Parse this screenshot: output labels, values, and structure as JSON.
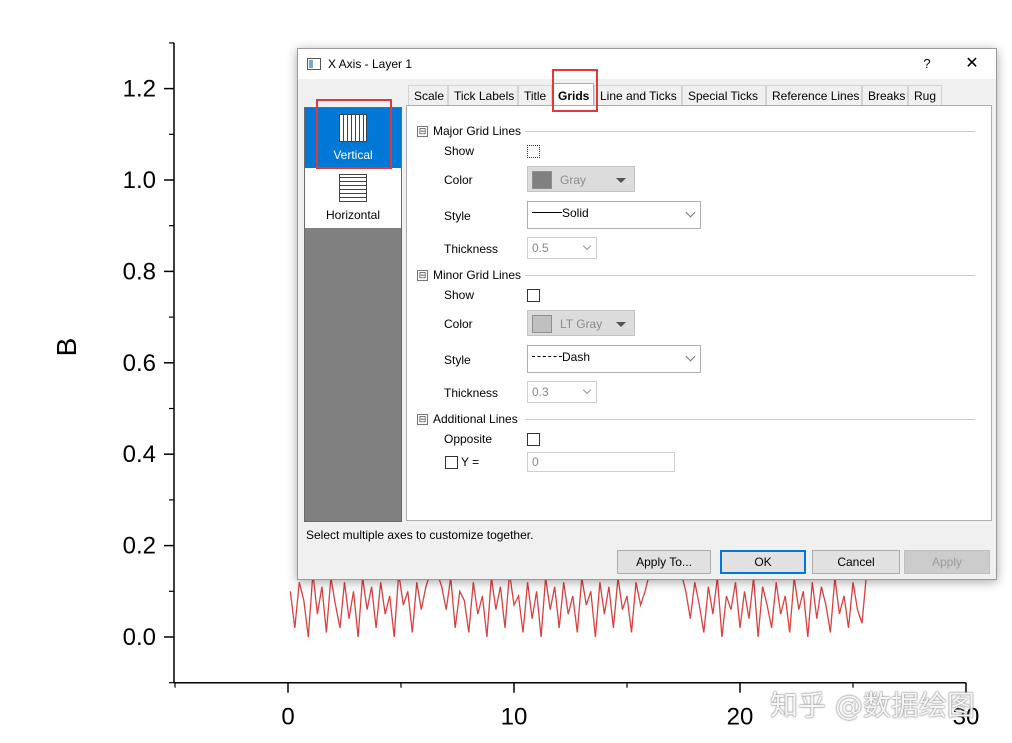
{
  "chart_data": {
    "type": "line",
    "ylabel": "B",
    "xlabel": "",
    "xlim": [
      -5,
      30
    ],
    "ylim": [
      -0.1,
      1.3
    ],
    "x_ticks": [
      0,
      10,
      20,
      30
    ],
    "y_ticks": [
      0.0,
      0.2,
      0.4,
      0.6,
      0.8,
      1.0,
      1.2
    ],
    "x_tick_labels": [
      "0",
      "10",
      "20",
      "30"
    ],
    "y_tick_labels": [
      "0.0",
      "0.2",
      "0.4",
      "0.6",
      "0.8",
      "1.0",
      "1.2"
    ],
    "line_color": "#d9413f",
    "series": [
      {
        "segments": [
          {
            "x": [
              0.1,
              0.3,
              0.5,
              0.7,
              0.9,
              1.1,
              1.3,
              1.5,
              1.7,
              1.9,
              2.1,
              2.3,
              2.5,
              2.7,
              2.9,
              3.1,
              3.3,
              3.5,
              3.7,
              3.9,
              4.1,
              4.3,
              4.5,
              4.7,
              4.9,
              5.1,
              5.3,
              5.5,
              5.7,
              5.9,
              6.1,
              6.3
            ],
            "y": [
              0.1,
              0.02,
              0.12,
              0.08,
              0.0,
              0.14,
              0.05,
              0.11,
              0.01,
              0.13,
              0.07,
              0.02,
              0.12,
              0.04,
              0.1,
              0.0,
              0.13,
              0.06,
              0.11,
              0.02,
              0.12,
              0.05,
              0.09,
              0.0,
              0.14,
              0.07,
              0.1,
              0.01,
              0.12,
              0.06,
              0.11,
              0.14
            ]
          },
          {
            "x": [
              6.6,
              6.8,
              7.0,
              7.2,
              7.4,
              7.6,
              7.8,
              8.0,
              8.2,
              8.4,
              8.6,
              8.8,
              9.0,
              9.2,
              9.4,
              9.6,
              9.8,
              10.0,
              10.2,
              10.4,
              10.6,
              10.8,
              11.0,
              11.2,
              11.4,
              11.6,
              11.8,
              12.0,
              12.2,
              12.4,
              12.6,
              12.8,
              13.0,
              13.2,
              13.4,
              13.6,
              13.8,
              14.0,
              14.2,
              14.4,
              14.6,
              14.8,
              15.0,
              15.2,
              15.4,
              15.6,
              15.8,
              16.0
            ],
            "y": [
              0.14,
              0.11,
              0.06,
              0.13,
              0.02,
              0.1,
              0.08,
              0.01,
              0.12,
              0.05,
              0.09,
              0.0,
              0.13,
              0.06,
              0.11,
              0.02,
              0.14,
              0.07,
              0.09,
              0.01,
              0.12,
              0.04,
              0.1,
              0.0,
              0.13,
              0.06,
              0.11,
              0.02,
              0.12,
              0.05,
              0.09,
              0.01,
              0.13,
              0.07,
              0.1,
              0.0,
              0.12,
              0.05,
              0.11,
              0.02,
              0.13,
              0.06,
              0.09,
              0.01,
              0.12,
              0.07,
              0.1,
              0.14
            ]
          },
          {
            "x": [
              17.4,
              17.6,
              17.8,
              18.0,
              18.2,
              18.4,
              18.6,
              18.8,
              19.0,
              19.2,
              19.4,
              19.6,
              19.8,
              20.0,
              20.2,
              20.4,
              20.6,
              20.8,
              21.0,
              21.2,
              21.4,
              21.6,
              21.8,
              22.0,
              22.2,
              22.4,
              22.6,
              22.8,
              23.0,
              23.2,
              23.4,
              23.6,
              23.8,
              24.0,
              24.2,
              24.4,
              24.6,
              24.8,
              25.0,
              25.2,
              25.4,
              25.6
            ],
            "y": [
              0.14,
              0.1,
              0.04,
              0.12,
              0.07,
              0.01,
              0.11,
              0.05,
              0.13,
              0.0,
              0.09,
              0.06,
              0.12,
              0.02,
              0.1,
              0.04,
              0.13,
              0.0,
              0.11,
              0.07,
              0.02,
              0.12,
              0.05,
              0.09,
              0.01,
              0.13,
              0.06,
              0.1,
              0.0,
              0.12,
              0.04,
              0.11,
              0.07,
              0.01,
              0.13,
              0.05,
              0.09,
              0.02,
              0.12,
              0.06,
              0.03,
              0.14
            ]
          }
        ]
      }
    ]
  },
  "dialog": {
    "title": "X Axis - Layer 1",
    "help": "?",
    "close": "✕",
    "left_items": [
      "Vertical",
      "Horizontal"
    ],
    "tabs": [
      "Scale",
      "Tick Labels",
      "Title",
      "Grids",
      "Line and Ticks",
      "Special Ticks",
      "Reference Lines",
      "Breaks",
      "Rug"
    ],
    "active_tab": "Grids",
    "major": {
      "header": "Major Grid Lines",
      "show_label": "Show",
      "color_label": "Color",
      "color_value": "Gray",
      "color_swatch": "#808080",
      "style_label": "Style",
      "style_value": "Solid",
      "thickness_label": "Thickness",
      "thickness_value": "0.5"
    },
    "minor": {
      "header": "Minor Grid Lines",
      "show_label": "Show",
      "color_label": "Color",
      "color_value": "LT Gray",
      "color_swatch": "#c0c0c0",
      "style_label": "Style",
      "style_value": "Dash",
      "thickness_label": "Thickness",
      "thickness_value": "0.3"
    },
    "additional": {
      "header": "Additional Lines",
      "opposite_label": "Opposite",
      "y_label": "Y =",
      "y_value": "0"
    },
    "status": "Select multiple axes to customize together.",
    "buttons": {
      "apply_to": "Apply To...",
      "ok": "OK",
      "cancel": "Cancel",
      "apply": "Apply"
    },
    "collapse_glyph": "⊟"
  },
  "watermark": "知乎 @数据绘图",
  "highlight_color": "#e0393b"
}
